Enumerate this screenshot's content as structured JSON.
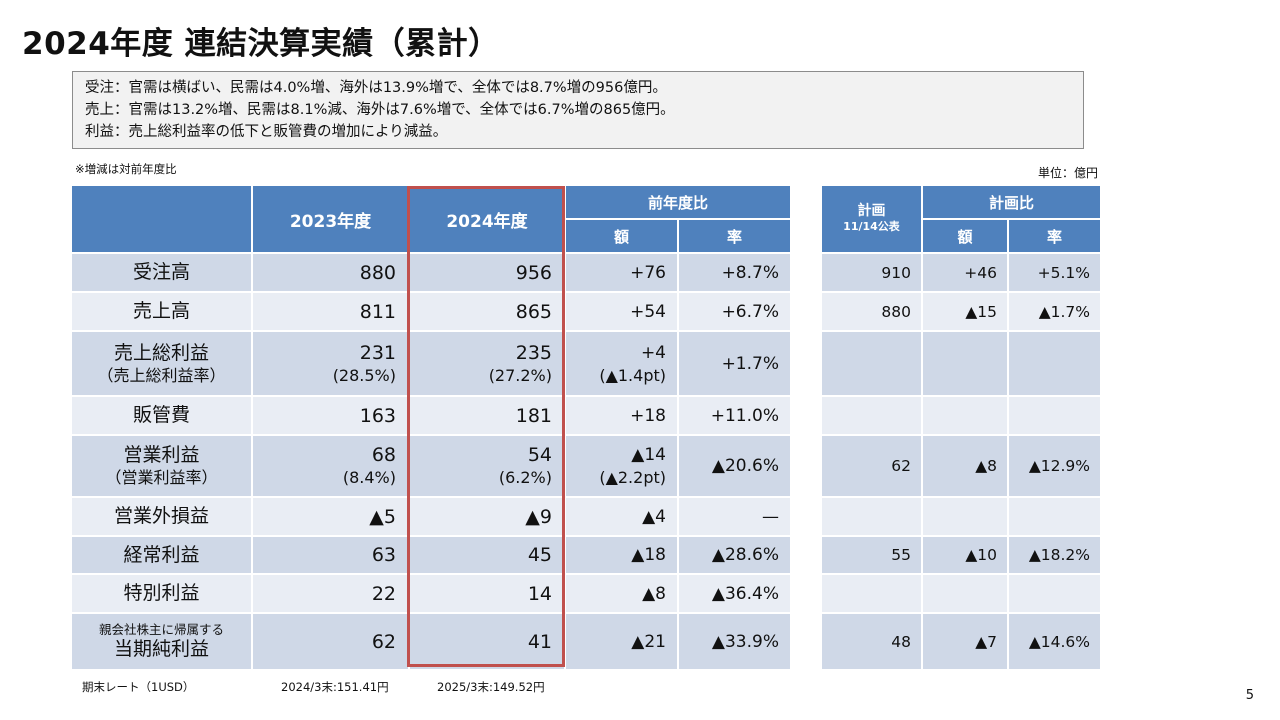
{
  "title": "2024年度 連結決算実績（累計）",
  "summary": [
    "受注：官需は横ばい、民需は4.0%増、海外は13.9%増で、全体では8.7%増の956億円。",
    "売上：官需は13.2%増、民需は8.1%減、海外は7.6%増で、全体では6.7%増の865億円。",
    "利益：売上総利益率の低下と販管費の増加により減益。"
  ],
  "note": "※増減は対前年度比",
  "unit": "単位：億円",
  "headers": {
    "fy2023": "2023年度",
    "fy2024": "2024年度",
    "yoy": "前年度比",
    "yoy_amount": "額",
    "yoy_rate": "率",
    "plan": "計画",
    "plan_date": "11/14公表",
    "vs_plan": "計画比",
    "plan_amount": "額",
    "plan_rate": "率"
  },
  "rows": [
    {
      "pre": "",
      "label": "受注高",
      "label_sub": "",
      "fy2023": "880",
      "fy2023_sub": "",
      "fy2024": "956",
      "fy2024_sub": "",
      "yoy_amount": "+76",
      "yoy_amount_sub": "",
      "yoy_rate": "+8.7%",
      "plan": "910",
      "plan_amount": "+46",
      "plan_rate": "+5.1%"
    },
    {
      "pre": "",
      "label": "売上高",
      "label_sub": "",
      "fy2023": "811",
      "fy2023_sub": "",
      "fy2024": "865",
      "fy2024_sub": "",
      "yoy_amount": "+54",
      "yoy_amount_sub": "",
      "yoy_rate": "+6.7%",
      "plan": "880",
      "plan_amount": "▲15",
      "plan_rate": "▲1.7%"
    },
    {
      "pre": "",
      "label": "売上総利益",
      "label_sub": "（売上総利益率）",
      "fy2023": "231",
      "fy2023_sub": "(28.5%)",
      "fy2024": "235",
      "fy2024_sub": "(27.2%)",
      "yoy_amount": "+4",
      "yoy_amount_sub": "(▲1.4pt)",
      "yoy_rate": "+1.7%",
      "plan": "",
      "plan_amount": "",
      "plan_rate": ""
    },
    {
      "pre": "",
      "label": "販管費",
      "label_sub": "",
      "fy2023": "163",
      "fy2023_sub": "",
      "fy2024": "181",
      "fy2024_sub": "",
      "yoy_amount": "+18",
      "yoy_amount_sub": "",
      "yoy_rate": "+11.0%",
      "plan": "",
      "plan_amount": "",
      "plan_rate": ""
    },
    {
      "pre": "",
      "label": "営業利益",
      "label_sub": "（営業利益率）",
      "fy2023": "68",
      "fy2023_sub": "(8.4%)",
      "fy2024": "54",
      "fy2024_sub": "(6.2%)",
      "yoy_amount": "▲14",
      "yoy_amount_sub": "(▲2.2pt)",
      "yoy_rate": "▲20.6%",
      "plan": "62",
      "plan_amount": "▲8",
      "plan_rate": "▲12.9%"
    },
    {
      "pre": "",
      "label": "営業外損益",
      "label_sub": "",
      "fy2023": "▲5",
      "fy2023_sub": "",
      "fy2024": "▲9",
      "fy2024_sub": "",
      "yoy_amount": "▲4",
      "yoy_amount_sub": "",
      "yoy_rate": "—",
      "plan": "",
      "plan_amount": "",
      "plan_rate": ""
    },
    {
      "pre": "",
      "label": "経常利益",
      "label_sub": "",
      "fy2023": "63",
      "fy2023_sub": "",
      "fy2024": "45",
      "fy2024_sub": "",
      "yoy_amount": "▲18",
      "yoy_amount_sub": "",
      "yoy_rate": "▲28.6%",
      "plan": "55",
      "plan_amount": "▲10",
      "plan_rate": "▲18.2%"
    },
    {
      "pre": "",
      "label": "特別利益",
      "label_sub": "",
      "fy2023": "22",
      "fy2023_sub": "",
      "fy2024": "14",
      "fy2024_sub": "",
      "yoy_amount": "▲8",
      "yoy_amount_sub": "",
      "yoy_rate": "▲36.4%",
      "plan": "",
      "plan_amount": "",
      "plan_rate": ""
    },
    {
      "pre": "親会社株主に帰属する",
      "label": "当期純利益",
      "label_sub": "",
      "fy2023": "62",
      "fy2023_sub": "",
      "fy2024": "41",
      "fy2024_sub": "",
      "yoy_amount": "▲21",
      "yoy_amount_sub": "",
      "yoy_rate": "▲33.9%",
      "plan": "48",
      "plan_amount": "▲7",
      "plan_rate": "▲14.6%"
    }
  ],
  "footer": {
    "rate_label": "期末レート（1USD）",
    "rate_2024": "2024/3末:151.41円",
    "rate_2025": "2025/3末:149.52円"
  },
  "page_number": "5"
}
